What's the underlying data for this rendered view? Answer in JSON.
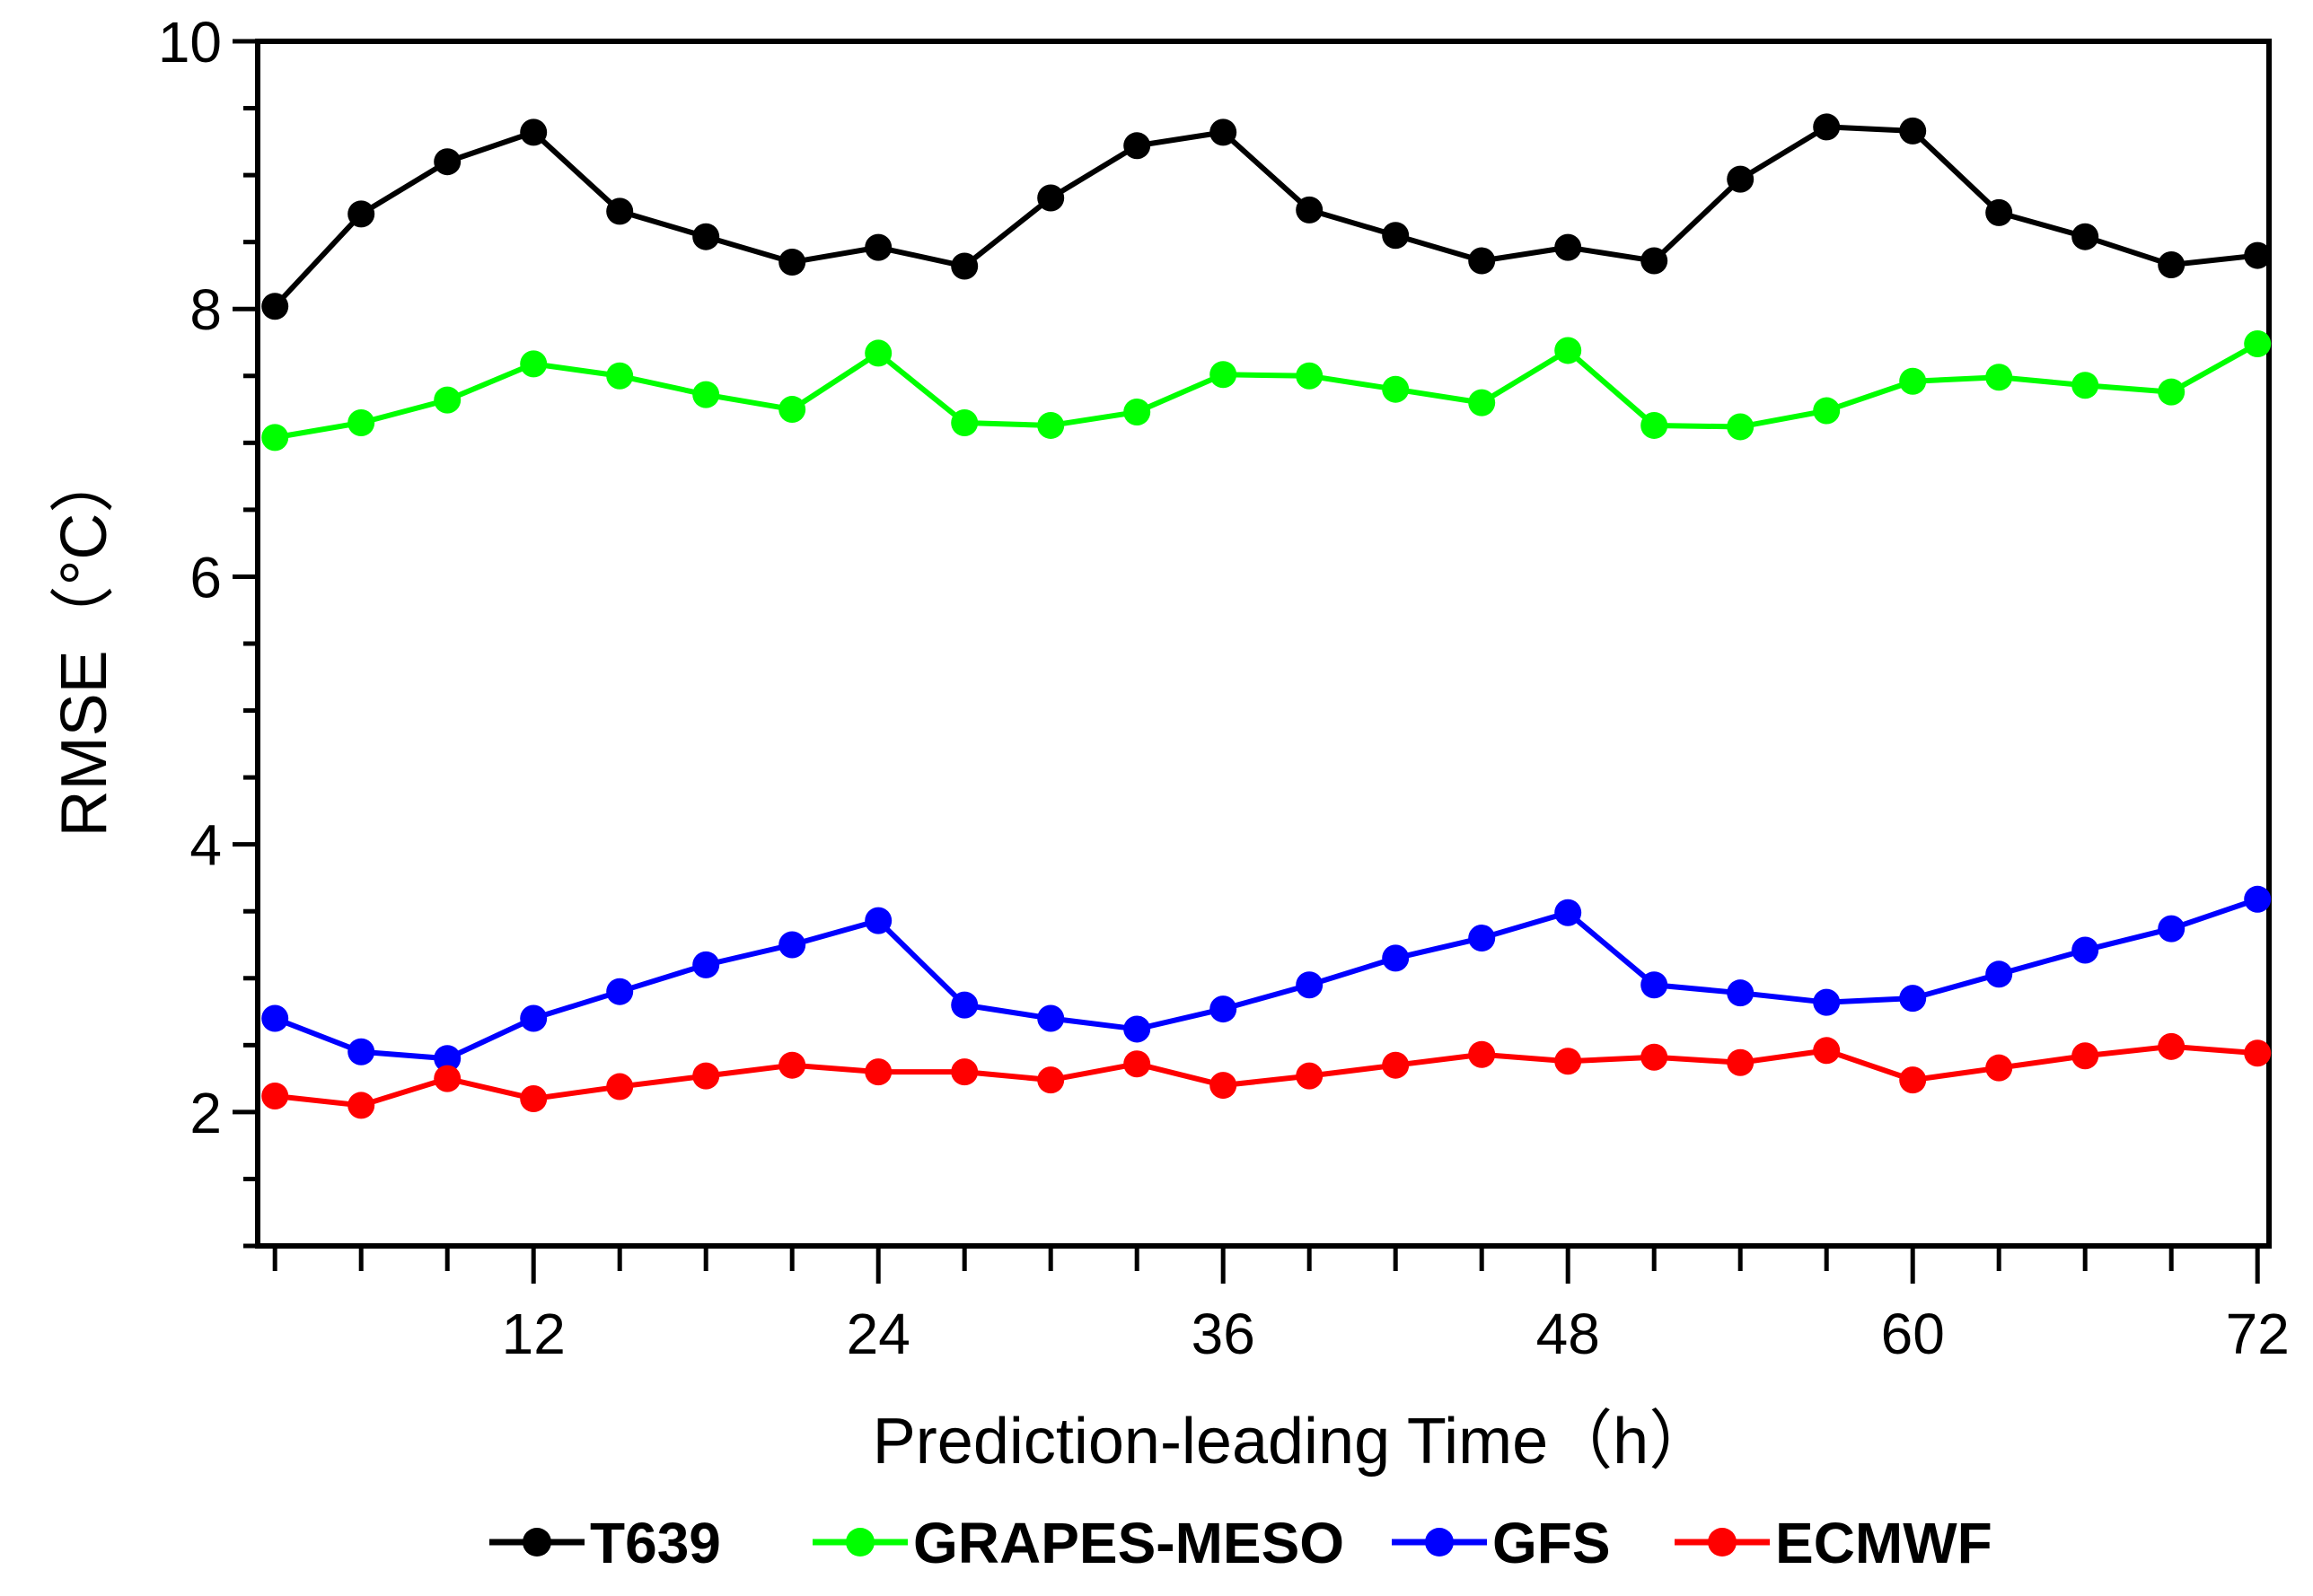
{
  "chart_data": {
    "type": "line",
    "title": "",
    "xlabel": "Prediction-leading Time（h）",
    "ylabel": "RMSE（°C）",
    "xlim": [
      2.4,
      72.4
    ],
    "ylim": [
      1,
      10
    ],
    "x_ticks": [
      12,
      24,
      36,
      48,
      60,
      72
    ],
    "y_ticks": [
      2,
      4,
      6,
      8,
      10
    ],
    "x_tick_labels": [
      "12",
      "24",
      "36",
      "48",
      "60",
      "72"
    ],
    "y_tick_labels": [
      "2",
      "4",
      "6",
      "8",
      "10"
    ],
    "x_minor_step": 3,
    "y_minor_step": 0.5,
    "legend_position": "bottom",
    "x": [
      3,
      6,
      9,
      12,
      15,
      18,
      21,
      24,
      27,
      30,
      33,
      36,
      39,
      42,
      45,
      48,
      51,
      54,
      57,
      60,
      63,
      66,
      69,
      72
    ],
    "series": [
      {
        "name": "T639",
        "color": "#000000",
        "values": [
          8.02,
          8.71,
          9.1,
          9.32,
          8.73,
          8.54,
          8.35,
          8.46,
          8.32,
          8.83,
          9.22,
          9.32,
          8.74,
          8.55,
          8.36,
          8.46,
          8.36,
          8.97,
          9.36,
          9.33,
          8.72,
          8.54,
          8.33,
          8.4
        ]
      },
      {
        "name": "GRAPES-MESO",
        "color": "#00ff00",
        "values": [
          7.04,
          7.15,
          7.32,
          7.59,
          7.5,
          7.36,
          7.25,
          7.67,
          7.15,
          7.13,
          7.23,
          7.51,
          7.5,
          7.4,
          7.3,
          7.69,
          7.13,
          7.12,
          7.24,
          7.46,
          7.49,
          7.43,
          7.38,
          7.74
        ]
      },
      {
        "name": "GFS",
        "color": "#0000ff",
        "values": [
          2.7,
          2.45,
          2.4,
          2.7,
          2.9,
          3.1,
          3.25,
          3.43,
          2.8,
          2.7,
          2.62,
          2.77,
          2.95,
          3.15,
          3.3,
          3.49,
          2.95,
          2.89,
          2.82,
          2.85,
          3.03,
          3.21,
          3.37,
          3.59
        ]
      },
      {
        "name": "ECMWF",
        "color": "#ff0000",
        "values": [
          2.12,
          2.05,
          2.25,
          2.1,
          2.19,
          2.27,
          2.35,
          2.3,
          2.3,
          2.24,
          2.36,
          2.2,
          2.27,
          2.35,
          2.43,
          2.38,
          2.41,
          2.37,
          2.46,
          2.24,
          2.33,
          2.42,
          2.49,
          2.44
        ]
      }
    ]
  }
}
